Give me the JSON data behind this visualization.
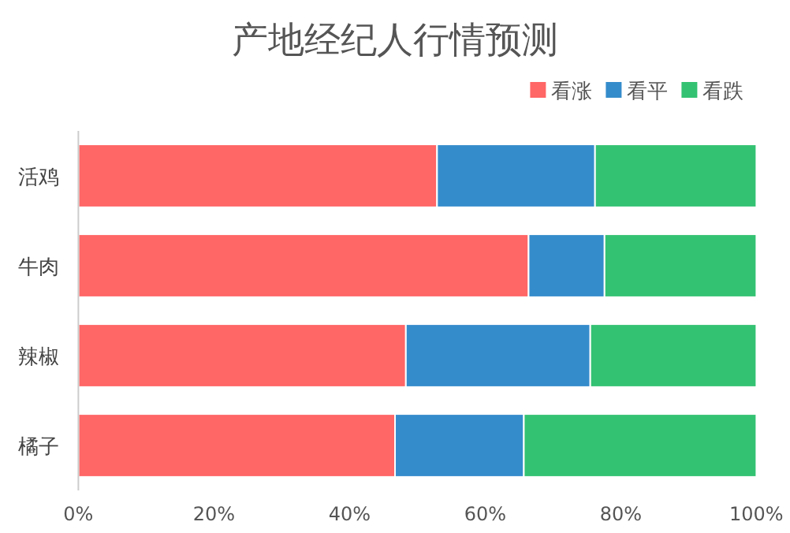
{
  "chart_data": {
    "type": "bar",
    "orientation": "horizontal",
    "stacked": true,
    "title": "产地经纪人行情预测",
    "categories": [
      "活鸡",
      "牛肉",
      "辣椒",
      "橘子"
    ],
    "series": [
      {
        "name": "看涨",
        "color": "#ff6666",
        "values": [
          52.9,
          66.4,
          48.3,
          46.7
        ]
      },
      {
        "name": "看平",
        "color": "#358ccb",
        "values": [
          23.3,
          11.2,
          27.2,
          19.0
        ]
      },
      {
        "name": "看跌",
        "color": "#33c272",
        "values": [
          23.8,
          22.4,
          24.5,
          34.3
        ]
      }
    ],
    "xlim": [
      0,
      100
    ],
    "xticks": [
      {
        "value": 0,
        "label": "0%"
      },
      {
        "value": 20,
        "label": "20%"
      },
      {
        "value": 40,
        "label": "40%"
      },
      {
        "value": 60,
        "label": "60%"
      },
      {
        "value": 80,
        "label": "80%"
      },
      {
        "value": 100,
        "label": "100%"
      }
    ],
    "legend": "top right",
    "grid": false
  }
}
